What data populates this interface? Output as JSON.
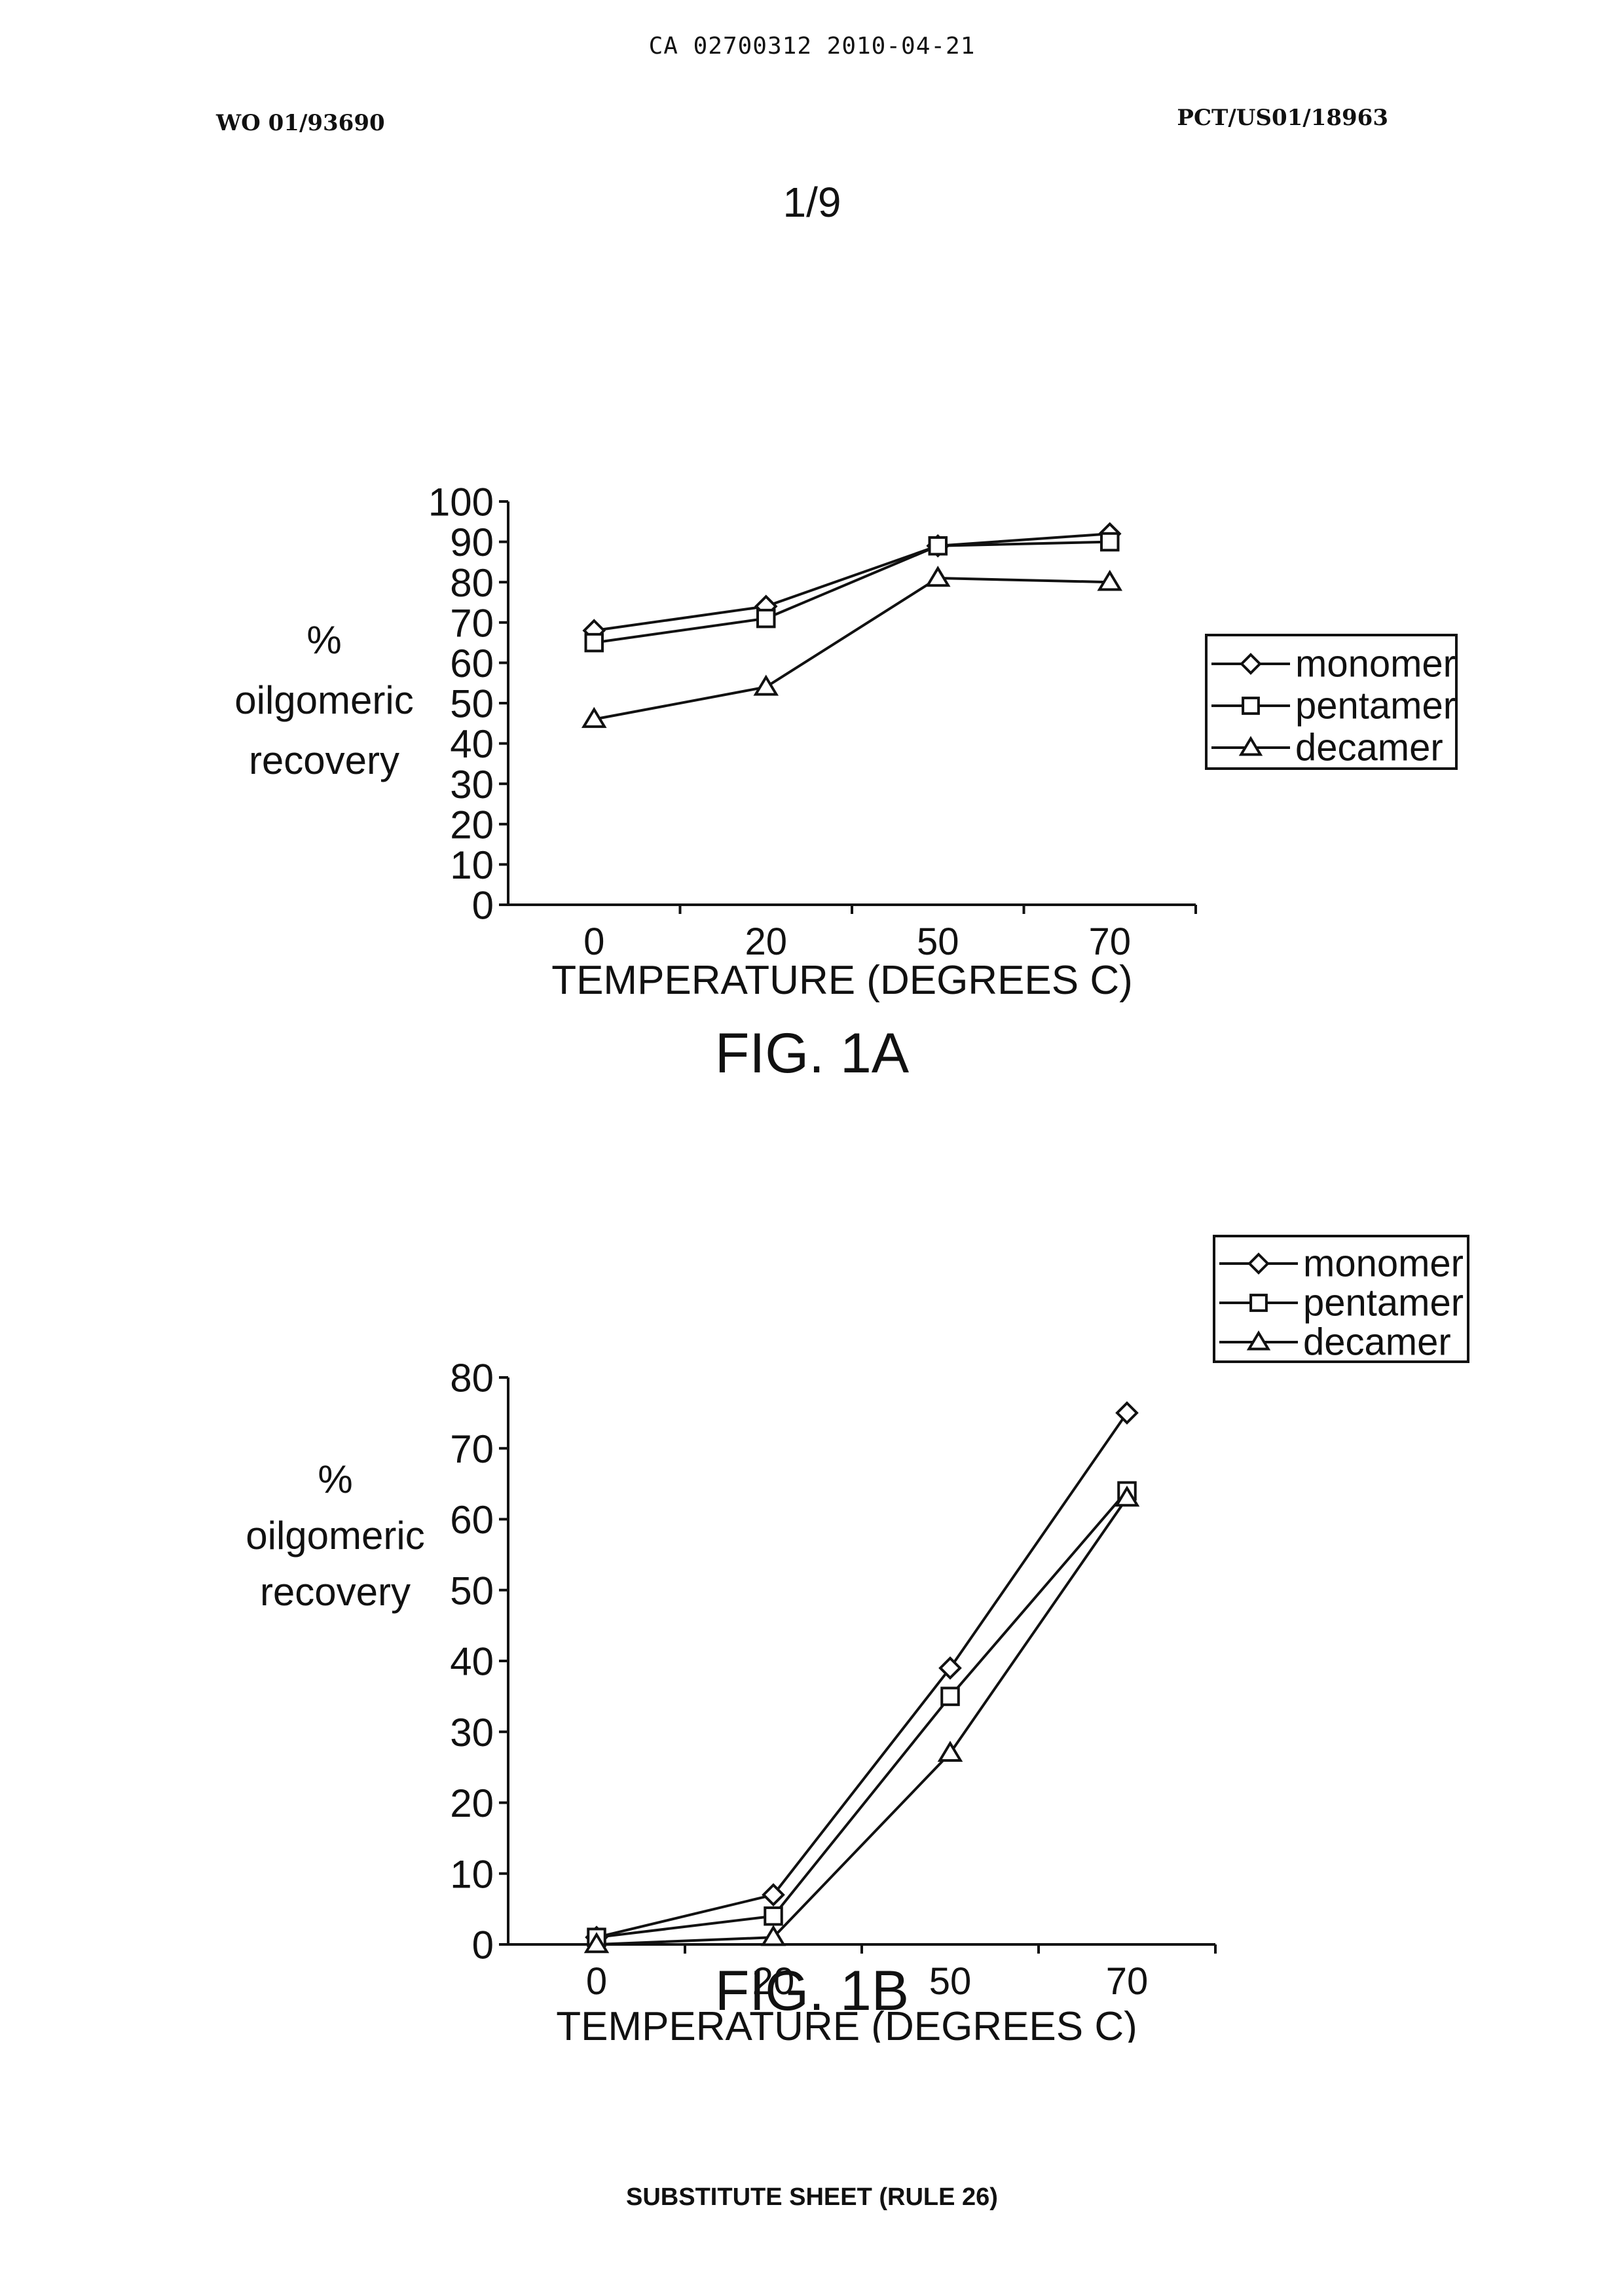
{
  "header": {
    "top_line": "CA 02700312 2010-04-21",
    "doc_left": "WO 01/93690",
    "doc_right": "PCT/US01/18963",
    "page_number": "1/9"
  },
  "footer": {
    "text": "SUBSTITUTE SHEET (RULE 26)"
  },
  "chart_data": [
    {
      "type": "line",
      "caption": "FIG. 1A",
      "categories": [
        "0",
        "20",
        "50",
        "70"
      ],
      "ylabel": [
        "%",
        "oilgomeric",
        "recovery"
      ],
      "xlabel": "TEMPERATURE (DEGREES C)",
      "ylim": [
        0,
        100
      ],
      "yticks": [
        0,
        10,
        20,
        30,
        40,
        50,
        60,
        70,
        80,
        90,
        100
      ],
      "grid": false,
      "legend": "right",
      "series": [
        {
          "name": "monomer",
          "marker": "diamond",
          "values": [
            68,
            74,
            89,
            92
          ]
        },
        {
          "name": "pentamer",
          "marker": "square",
          "values": [
            65,
            71,
            89,
            90
          ]
        },
        {
          "name": "decamer",
          "marker": "triangle",
          "values": [
            46,
            54,
            81,
            80
          ]
        }
      ]
    },
    {
      "type": "line",
      "caption": "FIG. 1B",
      "categories": [
        "0",
        "20",
        "50",
        "70"
      ],
      "ylabel": [
        "%",
        "oilgomeric",
        "recovery"
      ],
      "xlabel": "TEMPERATURE (DEGREES C)",
      "ylim": [
        0,
        80
      ],
      "yticks": [
        0,
        10,
        20,
        30,
        40,
        50,
        60,
        70,
        80
      ],
      "grid": false,
      "legend": "top-right",
      "series": [
        {
          "name": "monomer",
          "marker": "diamond",
          "values": [
            1,
            7,
            39,
            75
          ]
        },
        {
          "name": "pentamer",
          "marker": "square",
          "values": [
            1,
            4,
            35,
            64
          ]
        },
        {
          "name": "decamer",
          "marker": "triangle",
          "values": [
            0,
            1,
            27,
            63
          ]
        }
      ]
    }
  ]
}
